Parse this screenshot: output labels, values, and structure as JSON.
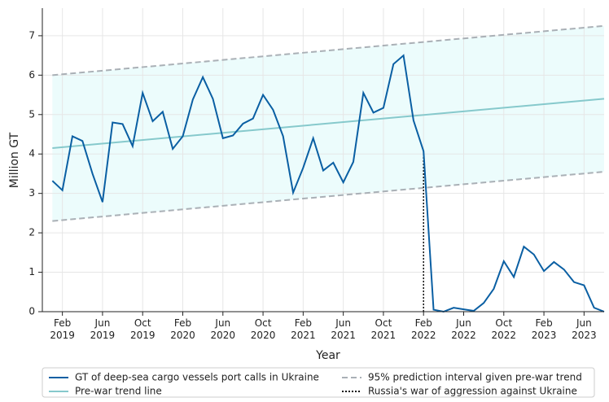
{
  "chart_data": {
    "type": "line",
    "ylabel": "Million GT",
    "xlabel": "Year",
    "xlim": [
      "2018-12",
      "2023-08"
    ],
    "ylim": [
      0,
      7.7
    ],
    "yticks": [
      0,
      1,
      2,
      3,
      4,
      5,
      6,
      7
    ],
    "xticks": [
      {
        "value": "2019-02",
        "label": "Feb 2019"
      },
      {
        "value": "2019-06",
        "label": "Jun 2019"
      },
      {
        "value": "2019-10",
        "label": "Oct 2019"
      },
      {
        "value": "2020-02",
        "label": "Feb 2020"
      },
      {
        "value": "2020-06",
        "label": "Jun 2020"
      },
      {
        "value": "2020-10",
        "label": "Oct 2020"
      },
      {
        "value": "2021-02",
        "label": "Feb 2021"
      },
      {
        "value": "2021-06",
        "label": "Jun 2021"
      },
      {
        "value": "2021-10",
        "label": "Oct 2021"
      },
      {
        "value": "2022-02",
        "label": "Feb 2022"
      },
      {
        "value": "2022-06",
        "label": "Jun 2022"
      },
      {
        "value": "2022-10",
        "label": "Oct 2022"
      },
      {
        "value": "2023-02",
        "label": "Feb 2023"
      },
      {
        "value": "2023-06",
        "label": "Jun 2023"
      }
    ],
    "grid": true,
    "series": [
      {
        "name": "GT of deep-sea cargo vessels port calls in Ukraine",
        "color": "#0a5fa3",
        "style": "solid",
        "x": [
          "2019-01",
          "2019-02",
          "2019-03",
          "2019-04",
          "2019-05",
          "2019-06",
          "2019-07",
          "2019-08",
          "2019-09",
          "2019-10",
          "2019-11",
          "2019-12",
          "2020-01",
          "2020-02",
          "2020-03",
          "2020-04",
          "2020-05",
          "2020-06",
          "2020-07",
          "2020-08",
          "2020-09",
          "2020-10",
          "2020-11",
          "2020-12",
          "2021-01",
          "2021-02",
          "2021-03",
          "2021-04",
          "2021-05",
          "2021-06",
          "2021-07",
          "2021-08",
          "2021-09",
          "2021-10",
          "2021-11",
          "2021-12",
          "2022-01",
          "2022-02",
          "2022-03",
          "2022-04",
          "2022-05",
          "2022-06",
          "2022-07",
          "2022-08",
          "2022-09",
          "2022-10",
          "2022-11",
          "2022-12",
          "2023-01",
          "2023-02",
          "2023-03",
          "2023-04",
          "2023-05",
          "2023-06",
          "2023-07",
          "2023-08"
        ],
        "values": [
          3.32,
          3.08,
          4.45,
          4.33,
          3.5,
          2.78,
          4.8,
          4.76,
          4.2,
          5.55,
          4.83,
          5.07,
          4.13,
          4.45,
          5.38,
          5.95,
          5.4,
          4.4,
          4.47,
          4.77,
          4.9,
          5.5,
          5.12,
          4.45,
          3.02,
          3.65,
          4.4,
          3.58,
          3.78,
          3.28,
          3.8,
          5.55,
          5.05,
          5.17,
          6.28,
          6.5,
          4.85,
          4.07,
          0.05,
          0.0,
          0.1,
          0.06,
          0.02,
          0.22,
          0.58,
          1.28,
          0.88,
          1.65,
          1.45,
          1.03,
          1.26,
          1.07,
          0.75,
          0.67,
          0.1,
          0.0
        ]
      },
      {
        "name": "Pre-war trend line",
        "color": "#86c9cc",
        "style": "solid",
        "x": [
          "2019-01",
          "2023-08"
        ],
        "values": [
          4.15,
          5.4
        ]
      },
      {
        "name": "95% prediction interval given pre-war trend",
        "color": "#aab0b6",
        "style": "dashed",
        "band_color": "#ecfcfc",
        "x": [
          "2019-01",
          "2023-08"
        ],
        "values": [
          6.0,
          7.25
        ],
        "lower": [
          2.3,
          3.55
        ]
      },
      {
        "name": "Russia's war of aggression against Ukraine",
        "color": "#111111",
        "style": "dotted",
        "x": [
          "2022-02",
          "2022-02"
        ],
        "values": [
          0,
          4.07
        ]
      }
    ]
  }
}
